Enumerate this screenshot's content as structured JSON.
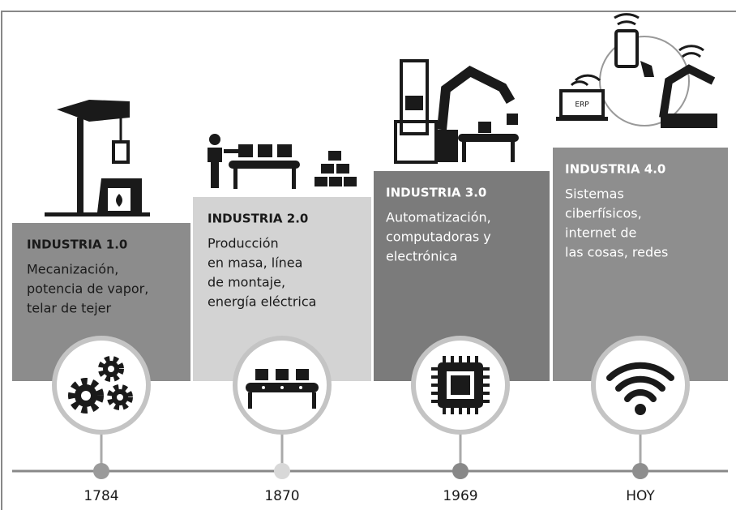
{
  "stages": [
    {
      "title": "INDUSTRIA 1.0",
      "lines": [
        "Mecanización,",
        "potencia de vapor,",
        "telar de tejer"
      ],
      "year": "1784"
    },
    {
      "title": "INDUSTRIA 2.0",
      "lines": [
        "Producción",
        "en masa, línea",
        "de montaje,",
        "energía eléctrica"
      ],
      "year": "1870"
    },
    {
      "title": "INDUSTRIA 3.0",
      "lines": [
        "Automatización,",
        "computadoras y",
        "electrónica"
      ],
      "year": "1969"
    },
    {
      "title": "INDUSTRIA 4.0",
      "lines": [
        "Sistemas",
        "ciberfísicos,",
        "internet de",
        "las cosas, redes"
      ],
      "year": "HOY"
    }
  ],
  "icon_label": "ERP"
}
